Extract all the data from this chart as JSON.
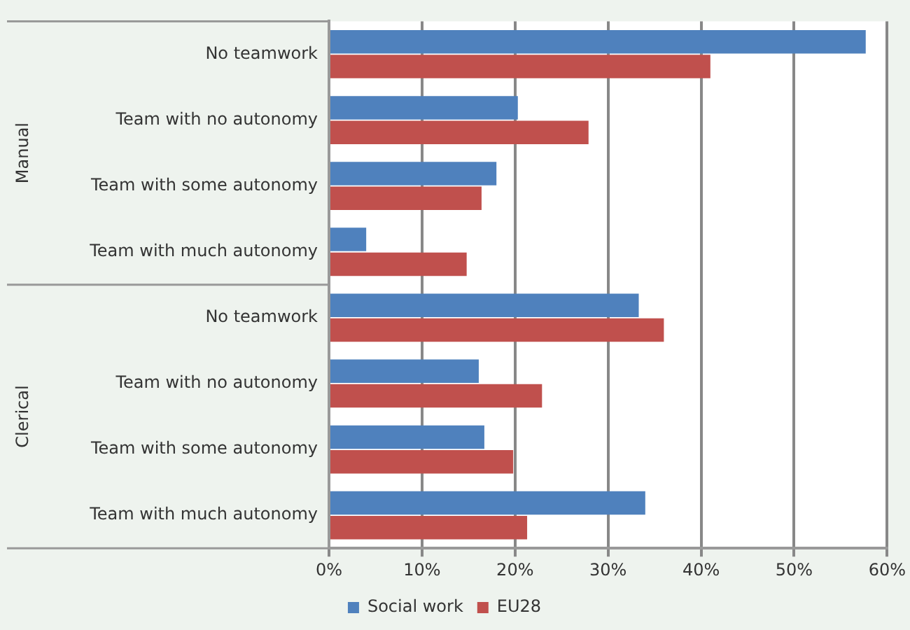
{
  "chart_data": {
    "type": "bar",
    "orientation": "horizontal",
    "categories": [
      "No teamwork",
      "Team with no autonomy",
      "Team with some autonomy",
      "Team with much autonomy",
      "No teamwork",
      "Team with no autonomy",
      "Team with some autonomy",
      "Team with much autonomy"
    ],
    "series": [
      {
        "name": "Social work",
        "color": "#4f81bd",
        "values": [
          57.7,
          20.3,
          18.0,
          4.0,
          33.3,
          16.1,
          16.7,
          34.0
        ]
      },
      {
        "name": "EU28",
        "color": "#c0504d",
        "values": [
          41.0,
          27.9,
          16.4,
          14.8,
          36.0,
          22.9,
          19.8,
          21.3
        ]
      }
    ],
    "xlim": [
      0,
      60
    ],
    "xticks": [
      {
        "value": 0,
        "label": "0%"
      },
      {
        "value": 10,
        "label": "10%"
      },
      {
        "value": 20,
        "label": "20%"
      },
      {
        "value": 30,
        "label": "30%"
      },
      {
        "value": 40,
        "label": "40%"
      },
      {
        "value": 50,
        "label": "50%"
      },
      {
        "value": 60,
        "label": "60%"
      }
    ],
    "annotations": [
      "Manual",
      "Clerical"
    ],
    "grid": "x",
    "legend": "bottom"
  }
}
